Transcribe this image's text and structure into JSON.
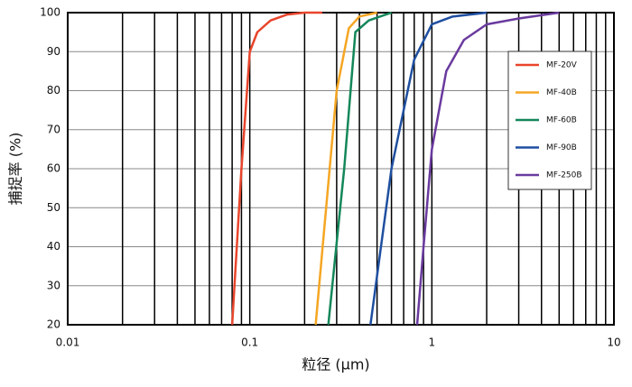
{
  "chart_data": {
    "type": "line",
    "x_label": "粒径 (μm)",
    "y_label": "捕捉率 (%)",
    "xscale": "log",
    "xlim": [
      0.01,
      10
    ],
    "xticks": [
      0.01,
      0.1,
      1,
      10
    ],
    "ylim": [
      20,
      100
    ],
    "yticks": [
      20,
      30,
      40,
      50,
      60,
      70,
      80,
      90,
      100
    ],
    "grid": true,
    "legend": "upper right",
    "series": [
      {
        "name": "MF-20V",
        "color": "#e8452c",
        "x": [
          0.08,
          0.09,
          0.1,
          0.11,
          0.13,
          0.16,
          0.2,
          0.25
        ],
        "values": [
          20,
          60,
          90,
          95,
          98,
          99.5,
          100,
          100
        ]
      },
      {
        "name": "MF-40B",
        "color": "#f5a623",
        "x": [
          0.23,
          0.3,
          0.35,
          0.4,
          0.5
        ],
        "values": [
          20,
          80,
          96,
          99,
          100
        ]
      },
      {
        "name": "MF-60B",
        "color": "#14875a",
        "x": [
          0.27,
          0.33,
          0.38,
          0.45,
          0.6
        ],
        "values": [
          20,
          60,
          95,
          98,
          100
        ]
      },
      {
        "name": "MF-90B",
        "color": "#1f4fa0",
        "x": [
          0.46,
          0.6,
          0.8,
          1,
          1.3,
          2
        ],
        "values": [
          20,
          60,
          88,
          97,
          99,
          100
        ]
      },
      {
        "name": "MF-250B",
        "color": "#6a3a9e",
        "x": [
          0.83,
          0.9,
          1,
          1.2,
          1.5,
          2,
          3,
          5
        ],
        "values": [
          20,
          40,
          65,
          85,
          93,
          97,
          98.5,
          100
        ]
      }
    ]
  }
}
